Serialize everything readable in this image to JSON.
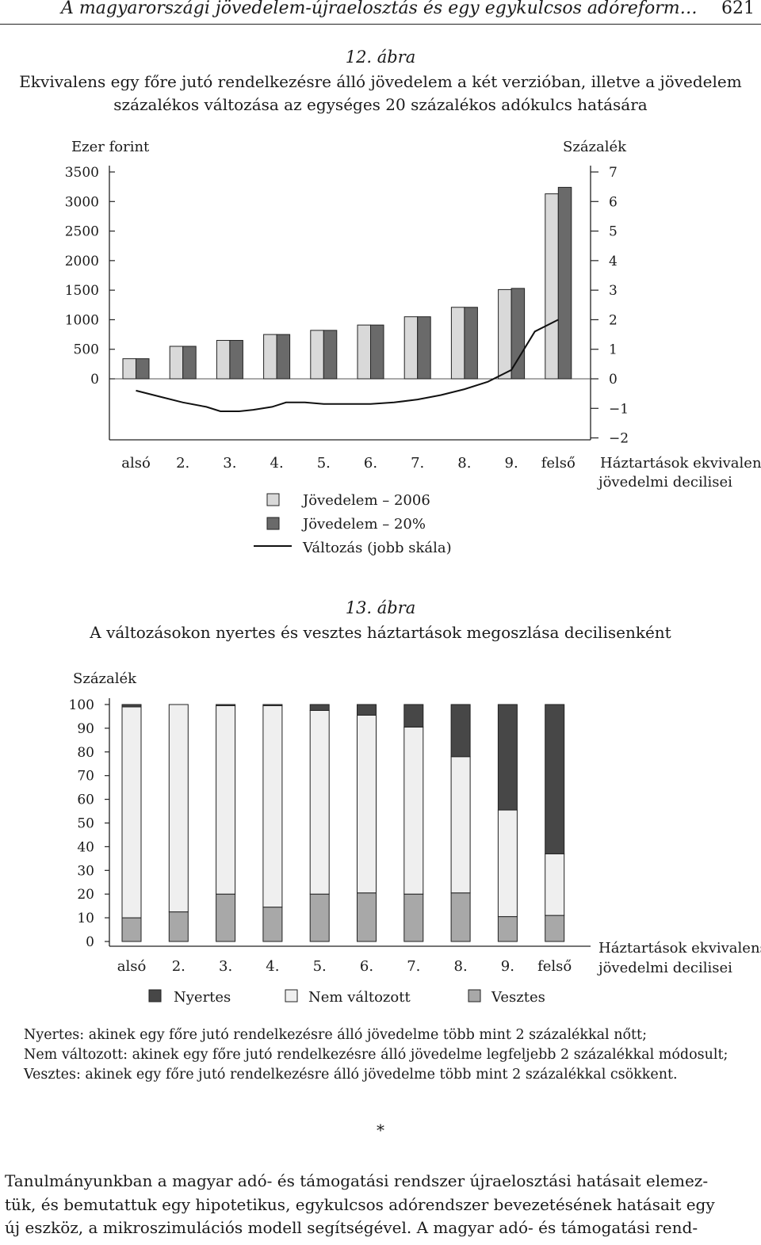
{
  "header": {
    "title": "A magyarországi jövedelem-újraelosztás és egy egykulcsos adóreform…",
    "page": "621"
  },
  "figure12": {
    "number": "12. ábra",
    "title_lines": [
      "Ekvivalens egy főre jutó rendelkezésre álló jövedelem a két verzióban, illetve a jövedelem",
      "százalékos változása az egységes 20 százalékos adókulcs hatására"
    ],
    "left_axis_label": "Ezer forint",
    "right_axis_label": "Százalék",
    "x_axis_label_lines": [
      "Háztartások ekvivalens",
      "jövedelmi decilisei"
    ],
    "legend": [
      "Jövedelem – 2006",
      "Jövedelem – 20%",
      "Változás (jobb skála)"
    ]
  },
  "figure13": {
    "number": "13. ábra",
    "title": "A változásokon nyertes és vesztes háztartások megoszlása decilisenként",
    "y_axis_label": "Százalék",
    "x_axis_label_lines": [
      "Háztartások ekvivalens",
      "jövedelmi decilisei"
    ],
    "legend": [
      "Nyertes",
      "Nem változott",
      "Vesztes"
    ]
  },
  "notes": [
    "Nyertes: akinek egy főre jutó rendelkezésre álló jövedelme több mint 2 százalékkal nőtt;",
    "Nem változott: akinek egy főre jutó rendelkezésre álló jövedelme legfeljebb 2 százalékkal módosult;",
    "Vesztes: akinek egy főre jutó rendelkezésre álló jövedelme több mint 2 százalékkal csökkent."
  ],
  "separator": "*",
  "body_lines": [
    "Tanulmányunkban a magyar adó- és támogatási rendszer újraelosztási hatásait elemez-",
    "tük, és bemutattuk egy hipotetikus, egykulcsos adórendszer bevezetésének hatásait egy",
    "új eszköz, a mikroszimulációs modell segítségével. A magyar adó- és támogatási rend-"
  ],
  "colors": {
    "light": "#d9d9d9",
    "dark": "#6a6a6a",
    "darker": "#474747",
    "mid": "#a8a8a8"
  },
  "chart_data": [
    {
      "type": "bar",
      "categories": [
        "alsó",
        "2.",
        "3.",
        "4.",
        "5.",
        "6.",
        "7.",
        "8.",
        "9.",
        "felső"
      ],
      "ylim": [
        0,
        3500
      ],
      "yticks": [
        0,
        500,
        1000,
        1500,
        2000,
        2500,
        3000,
        3500
      ],
      "y2lim": [
        -2,
        7
      ],
      "y2ticks": [
        -2,
        -1,
        0,
        1,
        2,
        3,
        4,
        5,
        6,
        7
      ],
      "ylabel": "Ezer forint",
      "y2label": "Százalék",
      "series": [
        {
          "name": "Jövedelem – 2006",
          "values": [
            340,
            550,
            650,
            750,
            820,
            910,
            1050,
            1210,
            1510,
            3130
          ]
        },
        {
          "name": "Jövedelem – 20%",
          "values": [
            340,
            550,
            650,
            750,
            820,
            910,
            1050,
            1210,
            1530,
            3240
          ]
        },
        {
          "name": "Változás (jobb skála)",
          "axis": "right",
          "x": [
            0.0,
            0.5,
            1.0,
            1.5,
            1.8,
            2.2,
            2.5,
            2.9,
            3.2,
            3.6,
            4.0,
            4.5,
            5.0,
            5.5,
            6.0,
            6.5,
            7.0,
            7.5,
            8.0,
            8.5,
            9.0
          ],
          "values": [
            -0.4,
            -0.6,
            -0.8,
            -0.95,
            -1.1,
            -1.1,
            -1.05,
            -0.95,
            -0.8,
            -0.8,
            -0.85,
            -0.85,
            -0.85,
            -0.8,
            -0.7,
            -0.55,
            -0.35,
            -0.1,
            0.3,
            1.6,
            2.0
          ]
        }
      ]
    },
    {
      "type": "bar",
      "stacked": true,
      "categories": [
        "alsó",
        "2.",
        "3.",
        "4.",
        "5.",
        "6.",
        "7.",
        "8.",
        "9.",
        "felső"
      ],
      "ylim": [
        0,
        100
      ],
      "yticks": [
        0,
        10,
        20,
        30,
        40,
        50,
        60,
        70,
        80,
        90,
        100
      ],
      "ylabel": "Százalék",
      "series": [
        {
          "name": "Vesztes",
          "values": [
            10,
            12.5,
            20,
            14.5,
            20,
            20.5,
            20,
            20.5,
            10.5,
            11
          ]
        },
        {
          "name": "Nem változott",
          "values": [
            89,
            87.5,
            79.5,
            85,
            77.5,
            75,
            70.5,
            57.5,
            45,
            26
          ]
        },
        {
          "name": "Nyertes",
          "values": [
            1,
            0,
            0.5,
            0.5,
            2.5,
            4.5,
            9.5,
            22,
            44.5,
            63
          ]
        }
      ]
    }
  ]
}
